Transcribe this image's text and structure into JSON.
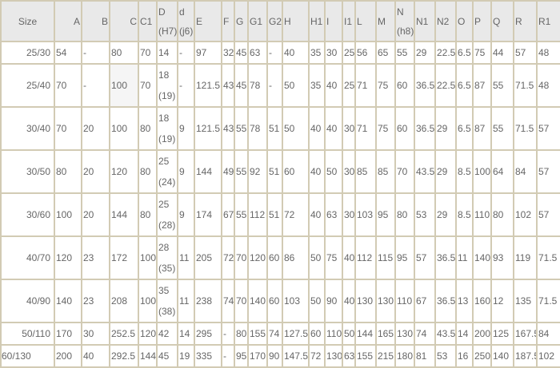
{
  "table": {
    "headers": [
      "Size",
      "A",
      "B",
      "C",
      "C1",
      "D\n(H7)",
      "d\n(j6)",
      "E",
      "F",
      "G",
      "G1",
      "G2",
      "H",
      "H1",
      "I",
      "I1",
      "L",
      "M",
      "N\n(h8)",
      "N1",
      "N2",
      "O",
      "P",
      "Q",
      "R",
      "R1"
    ],
    "rows": [
      [
        "25/30",
        "54",
        "-",
        "80",
        "70",
        "14",
        "-",
        "97",
        "32",
        "45",
        "63",
        "-",
        "40",
        "35",
        "30",
        "25",
        "56",
        "65",
        "55",
        "29",
        "22.5",
        "6.5",
        "75",
        "44",
        "57",
        "48"
      ],
      [
        "25/40",
        "70",
        "-",
        "100",
        "70",
        "18\n(19)",
        "-",
        "121.5",
        "43",
        "45",
        "78",
        "-",
        "50",
        "35",
        "40",
        "25",
        "71",
        "75",
        "60",
        "36.5",
        "22.5",
        "6.5",
        "87",
        "55",
        "71.5",
        "48"
      ],
      [
        "30/40",
        "70",
        "20",
        "100",
        "80",
        "18\n(19)",
        "9",
        "121.5",
        "43",
        "55",
        "78",
        "51",
        "50",
        "40",
        "40",
        "30",
        "71",
        "75",
        "60",
        "36.5",
        "29",
        "6.5",
        "87",
        "55",
        "71.5",
        "57"
      ],
      [
        "30/50",
        "80",
        "20",
        "120",
        "80",
        "25\n(24)",
        "9",
        "144",
        "49",
        "55",
        "92",
        "51",
        "60",
        "40",
        "50",
        "30",
        "85",
        "85",
        "70",
        "43.5",
        "29",
        "8.5",
        "100",
        "64",
        "84",
        "57"
      ],
      [
        "30/60",
        "100",
        "20",
        "144",
        "80",
        "25\n(28)",
        "9",
        "174",
        "67",
        "55",
        "112",
        "51",
        "72",
        "40",
        "63",
        "30",
        "103",
        "95",
        "80",
        "53",
        "29",
        "8.5",
        "110",
        "80",
        "102",
        "57"
      ],
      [
        "40/70",
        "120",
        "23",
        "172",
        "100",
        "28\n(35)",
        "11",
        "205",
        "72",
        "70",
        "120",
        "60",
        "86",
        "50",
        "75",
        "40",
        "112",
        "115",
        "95",
        "57",
        "36.5",
        "11",
        "140",
        "93",
        "119",
        "71.5"
      ],
      [
        "40/90",
        "140",
        "23",
        "208",
        "100",
        "35\n(38)",
        "11",
        "238",
        "74",
        "70",
        "140",
        "60",
        "103",
        "50",
        "90",
        "40",
        "130",
        "130",
        "110",
        "67",
        "36.5",
        "13",
        "160",
        "12",
        "135",
        "71.5"
      ],
      [
        "50/110",
        "170",
        "30",
        "252.5",
        "120",
        "42",
        "14",
        "295",
        "-",
        "80",
        "155",
        "74",
        "127.5",
        "60",
        "110",
        "50",
        "144",
        "165",
        "130",
        "74",
        "43.5",
        "14",
        "200",
        "125",
        "167.5",
        "84"
      ],
      [
        "60/130",
        "200",
        "40",
        "292.5",
        "144",
        "45",
        "19",
        "335",
        "-",
        "95",
        "170",
        "90",
        "147.5",
        "72",
        "130",
        "63",
        "155",
        "215",
        "180",
        "81",
        "53",
        "16",
        "250",
        "140",
        "187.5",
        "102"
      ]
    ]
  },
  "colors": {
    "border": "#d2cbb4",
    "header_bg": "#e9e9e9",
    "text": "#666666"
  }
}
